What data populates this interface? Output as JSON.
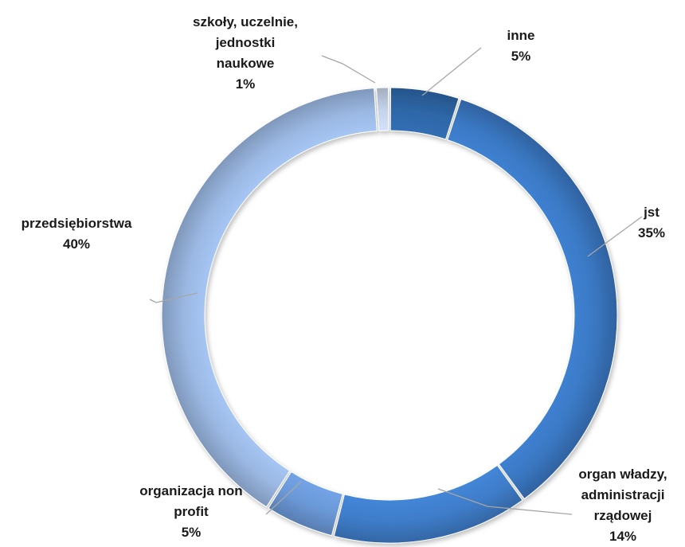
{
  "chart_data": {
    "type": "pie",
    "variant": "donut",
    "title": "",
    "slices": [
      {
        "name": "inne",
        "value": 5,
        "label_lines": [
          "inne",
          "5%"
        ],
        "color": "#2e67a8"
      },
      {
        "name": "jst",
        "value": 35,
        "label_lines": [
          "jst",
          "35%"
        ],
        "color": "#3a78c3"
      },
      {
        "name": "organ władzy, administracji rządowej",
        "value": 14,
        "label_lines": [
          "organ władzy,",
          "administracji",
          "rządowej",
          "14%"
        ],
        "color": "#3f7dca"
      },
      {
        "name": "organizacja non profit",
        "value": 5,
        "label_lines": [
          "organizacja non",
          "profit",
          "5%"
        ],
        "color": "#6b99d8"
      },
      {
        "name": "przedsiębiorstwa",
        "value": 40,
        "label_lines": [
          "przedsiębiorstwa",
          "40%"
        ],
        "color": "#9bb8e3"
      },
      {
        "name": "szkoły, uczelnie, jednostki naukowe",
        "value": 1,
        "label_lines": [
          "szkoły, uczelnie,",
          "jednostki",
          "naukowe",
          "1%"
        ],
        "color": "#c5d3ea"
      }
    ],
    "legend": "none",
    "start_angle_deg": 0,
    "direction": "clockwise"
  }
}
